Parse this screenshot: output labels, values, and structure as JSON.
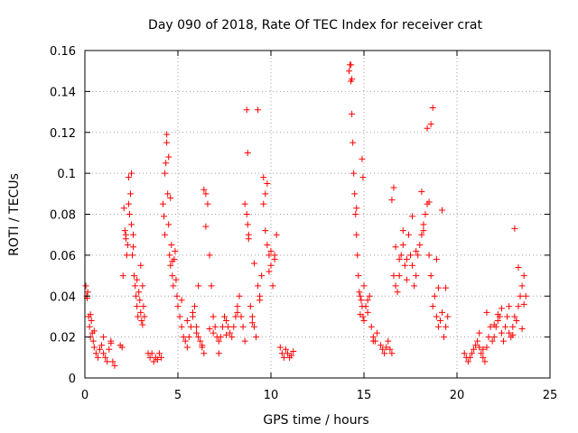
{
  "chart_data": {
    "type": "scatter",
    "title": "Day 090 of 2018, Rate Of TEC Index for receiver crat",
    "xlabel": "GPS time / hours",
    "ylabel": "ROTI / TECUs",
    "xlim": [
      0,
      25
    ],
    "ylim": [
      0,
      0.16
    ],
    "xticks": [
      0,
      5,
      10,
      15,
      20,
      25
    ],
    "yticks": [
      0,
      0.02,
      0.04,
      0.06,
      0.08,
      0.1,
      0.12,
      0.14,
      0.16
    ],
    "xtick_labels": [
      "0",
      "5",
      "10",
      "15",
      "20",
      "25"
    ],
    "ytick_labels": [
      "0",
      "0.02",
      "0.04",
      "0.06",
      "0.08",
      "0.1",
      "0.12",
      "0.14",
      "0.16"
    ],
    "grid": true,
    "marker": "plus",
    "color": "#ff0000",
    "series": [
      {
        "name": "ROTI",
        "x": [
          0.05,
          0.1,
          0.15,
          0.2,
          0.25,
          0.3,
          0.35,
          0.4,
          0.45,
          0.5,
          0.6,
          0.7,
          0.8,
          0.9,
          1.0,
          1.1,
          1.2,
          1.3,
          1.4,
          1.5,
          1.6,
          1.9,
          2.0,
          2.05,
          2.1,
          2.15,
          2.2,
          2.25,
          2.3,
          2.35,
          2.4,
          2.45,
          2.5,
          2.55,
          2.6,
          2.65,
          2.7,
          2.75,
          2.8,
          2.85,
          2.9,
          2.95,
          3.0,
          3.05,
          3.1,
          3.15,
          3.2,
          3.4,
          3.5,
          3.6,
          3.7,
          3.8,
          3.9,
          4.0,
          4.1,
          4.2,
          4.25,
          4.3,
          4.35,
          4.4,
          4.45,
          4.5,
          4.55,
          4.6,
          4.65,
          4.7,
          4.75,
          4.8,
          4.85,
          4.9,
          4.95,
          5.0,
          5.1,
          5.2,
          5.3,
          5.4,
          5.5,
          5.6,
          5.7,
          5.8,
          5.9,
          6.0,
          6.1,
          6.2,
          6.3,
          6.4,
          6.5,
          6.6,
          6.7,
          6.8,
          6.9,
          7.0,
          7.1,
          7.2,
          7.3,
          7.4,
          7.5,
          7.6,
          7.7,
          7.8,
          7.9,
          8.0,
          8.1,
          8.2,
          8.3,
          8.4,
          8.5,
          8.6,
          8.7,
          8.75,
          8.8,
          8.9,
          9.0,
          9.1,
          9.2,
          9.3,
          9.4,
          9.5,
          9.6,
          9.7,
          9.8,
          9.9,
          10.0,
          10.1,
          10.2,
          10.3,
          10.5,
          10.6,
          10.7,
          10.8,
          10.9,
          11.0,
          11.1,
          11.2,
          14.2,
          14.25,
          14.3,
          14.35,
          14.4,
          14.45,
          14.5,
          14.55,
          14.6,
          14.65,
          14.7,
          14.75,
          14.8,
          14.85,
          14.9,
          14.95,
          15.0,
          15.1,
          15.2,
          15.3,
          15.4,
          15.5,
          15.6,
          15.7,
          15.9,
          16.0,
          16.1,
          16.2,
          16.3,
          16.4,
          16.5,
          16.6,
          16.7,
          16.8,
          16.9,
          17.0,
          17.1,
          17.2,
          17.3,
          17.4,
          17.5,
          17.6,
          17.7,
          17.8,
          17.9,
          18.0,
          18.1,
          18.2,
          18.3,
          18.4,
          18.5,
          18.6,
          18.7,
          18.8,
          18.9,
          19.0,
          19.1,
          19.2,
          19.3,
          19.4,
          19.5,
          20.4,
          20.5,
          20.6,
          20.7,
          20.8,
          20.9,
          21.0,
          21.1,
          21.2,
          21.3,
          21.4,
          21.5,
          21.6,
          21.7,
          21.8,
          21.9,
          22.0,
          22.1,
          22.2,
          22.3,
          22.4,
          22.5,
          22.6,
          22.7,
          22.8,
          22.9,
          23.0,
          23.1,
          23.2,
          23.3,
          23.4,
          23.5,
          23.6,
          23.7,
          0.12,
          0.3,
          0.5,
          1.0,
          1.4,
          2.2,
          2.5,
          3.0,
          4.4,
          4.5,
          4.6,
          6.4,
          6.5,
          8.7,
          8.75,
          9.3,
          9.6,
          9.8,
          14.3,
          14.35,
          14.9,
          14.95,
          16.5,
          16.6,
          18.4,
          18.6,
          18.7,
          19.2,
          23.1,
          23.3,
          5.2,
          5.5,
          5.8,
          6.0,
          6.3,
          6.7,
          7.2,
          7.6,
          8.2,
          8.6,
          9.0,
          9.4,
          9.9,
          10.2,
          15.2,
          15.5,
          16.9,
          17.3,
          17.8,
          18.2,
          18.9,
          19.4,
          21.2,
          21.6,
          22.0,
          22.4,
          22.8,
          23.2,
          23.6,
          2.35,
          2.6,
          2.8,
          3.1,
          4.3,
          4.7,
          6.1,
          6.9,
          8.8,
          9.1,
          9.7,
          10.0,
          14.6,
          14.8,
          15.0,
          16.7,
          17.1,
          17.6,
          18.1,
          18.5,
          19.0,
          21.4,
          22.2,
          23.0,
          23.5
        ],
        "y": [
          0.045,
          0.04,
          0.042,
          0.03,
          0.025,
          0.02,
          0.028,
          0.022,
          0.018,
          0.015,
          0.012,
          0.01,
          0.014,
          0.016,
          0.012,
          0.01,
          0.008,
          0.014,
          0.018,
          0.008,
          0.006,
          0.016,
          0.015,
          0.05,
          0.083,
          0.072,
          0.07,
          0.06,
          0.065,
          0.085,
          0.08,
          0.09,
          0.075,
          0.06,
          0.07,
          0.05,
          0.045,
          0.04,
          0.035,
          0.03,
          0.042,
          0.038,
          0.032,
          0.028,
          0.045,
          0.035,
          0.03,
          0.012,
          0.01,
          0.012,
          0.008,
          0.01,
          0.009,
          0.012,
          0.01,
          0.085,
          0.079,
          0.07,
          0.105,
          0.115,
          0.09,
          0.075,
          0.06,
          0.055,
          0.065,
          0.05,
          0.045,
          0.058,
          0.062,
          0.048,
          0.04,
          0.035,
          0.03,
          0.025,
          0.02,
          0.018,
          0.015,
          0.02,
          0.025,
          0.03,
          0.035,
          0.025,
          0.02,
          0.018,
          0.015,
          0.012,
          0.09,
          0.085,
          0.06,
          0.045,
          0.03,
          0.025,
          0.02,
          0.018,
          0.02,
          0.025,
          0.03,
          0.028,
          0.025,
          0.022,
          0.02,
          0.025,
          0.03,
          0.035,
          0.04,
          0.03,
          0.025,
          0.085,
          0.08,
          0.075,
          0.07,
          0.035,
          0.03,
          0.025,
          0.02,
          0.045,
          0.04,
          0.05,
          0.085,
          0.09,
          0.065,
          0.06,
          0.055,
          0.045,
          0.06,
          0.07,
          0.015,
          0.012,
          0.01,
          0.014,
          0.012,
          0.01,
          0.011,
          0.013,
          0.15,
          0.153,
          0.145,
          0.129,
          0.115,
          0.1,
          0.09,
          0.08,
          0.07,
          0.06,
          0.05,
          0.042,
          0.04,
          0.038,
          0.035,
          0.03,
          0.028,
          0.035,
          0.032,
          0.04,
          0.025,
          0.02,
          0.018,
          0.022,
          0.016,
          0.014,
          0.012,
          0.015,
          0.018,
          0.014,
          0.012,
          0.05,
          0.045,
          0.042,
          0.05,
          0.06,
          0.065,
          0.055,
          0.058,
          0.07,
          0.06,
          0.055,
          0.045,
          0.05,
          0.06,
          0.065,
          0.07,
          0.075,
          0.08,
          0.085,
          0.06,
          0.05,
          0.035,
          0.04,
          0.03,
          0.025,
          0.028,
          0.032,
          0.02,
          0.025,
          0.03,
          0.012,
          0.01,
          0.008,
          0.01,
          0.012,
          0.014,
          0.016,
          0.018,
          0.015,
          0.012,
          0.01,
          0.008,
          0.015,
          0.02,
          0.025,
          0.018,
          0.02,
          0.025,
          0.028,
          0.03,
          0.022,
          0.018,
          0.025,
          0.03,
          0.035,
          0.02,
          0.025,
          0.03,
          0.028,
          0.035,
          0.04,
          0.045,
          0.05,
          0.04,
          0.039,
          0.031,
          0.023,
          0.02,
          0.017,
          0.068,
          0.1,
          0.055,
          0.119,
          0.108,
          0.088,
          0.092,
          0.074,
          0.131,
          0.11,
          0.131,
          0.098,
          0.095,
          0.153,
          0.146,
          0.107,
          0.098,
          0.087,
          0.093,
          0.122,
          0.124,
          0.132,
          0.082,
          0.073,
          0.054,
          0.038,
          0.028,
          0.032,
          0.022,
          0.016,
          0.024,
          0.012,
          0.021,
          0.032,
          0.018,
          0.027,
          0.038,
          0.052,
          0.058,
          0.038,
          0.018,
          0.058,
          0.048,
          0.062,
          0.072,
          0.058,
          0.044,
          0.022,
          0.032,
          0.026,
          0.034,
          0.022,
          0.028,
          0.036,
          0.098,
          0.064,
          0.048,
          0.026,
          0.1,
          0.057,
          0.045,
          0.022,
          0.068,
          0.056,
          0.072,
          0.062,
          0.083,
          0.031,
          0.045,
          0.064,
          0.072,
          0.079,
          0.091,
          0.086,
          0.044,
          0.014,
          0.031,
          0.021,
          0.024
        ]
      }
    ]
  }
}
